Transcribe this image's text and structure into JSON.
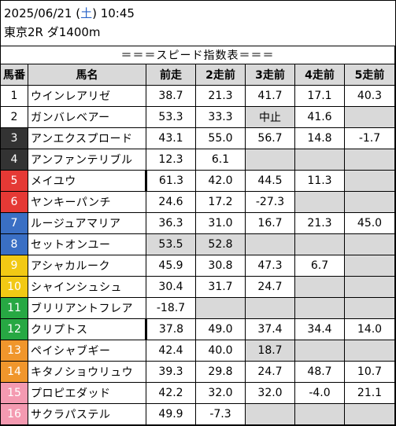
{
  "header": {
    "date": "2025/06/21 (",
    "dow": "土",
    "time": ") 10:45",
    "race": "東京2R ダ1400m"
  },
  "table": {
    "title": "＝＝＝スピード指数表＝＝＝",
    "columns": [
      "馬番",
      "馬名",
      "前走",
      "2走前",
      "3走前",
      "4走前",
      "5走前"
    ],
    "rows": [
      {
        "no": "1",
        "name": "ウインレアリゼ",
        "v": [
          "38.7",
          "21.3",
          "41.7",
          "17.1",
          "40.3"
        ],
        "gray": [
          false,
          false,
          false,
          false,
          false
        ],
        "mark": false
      },
      {
        "no": "2",
        "name": "ガンバレベアー",
        "v": [
          "53.3",
          "33.3",
          "中止",
          "41.6",
          ""
        ],
        "gray": [
          false,
          false,
          true,
          false,
          true
        ],
        "mark": false
      },
      {
        "no": "3",
        "name": "アンエクスプロード",
        "v": [
          "43.1",
          "55.0",
          "56.7",
          "14.8",
          "-1.7"
        ],
        "gray": [
          false,
          false,
          false,
          false,
          false
        ],
        "mark": false
      },
      {
        "no": "4",
        "name": "アンファンテリブル",
        "v": [
          "12.3",
          "6.1",
          "",
          "",
          ""
        ],
        "gray": [
          false,
          false,
          true,
          true,
          true
        ],
        "mark": false
      },
      {
        "no": "5",
        "name": "メイユウ",
        "v": [
          "61.3",
          "42.0",
          "44.5",
          "11.3",
          ""
        ],
        "gray": [
          false,
          false,
          false,
          false,
          true
        ],
        "mark": true
      },
      {
        "no": "6",
        "name": "ヤンキーパンチ",
        "v": [
          "24.6",
          "17.2",
          "-27.3",
          "",
          ""
        ],
        "gray": [
          false,
          false,
          false,
          true,
          true
        ],
        "mark": false
      },
      {
        "no": "7",
        "name": "ルージュアマリア",
        "v": [
          "36.3",
          "31.0",
          "16.7",
          "21.3",
          "45.0"
        ],
        "gray": [
          false,
          false,
          false,
          false,
          false
        ],
        "mark": false
      },
      {
        "no": "8",
        "name": "セットオンユー",
        "v": [
          "53.5",
          "52.8",
          "",
          "",
          ""
        ],
        "gray": [
          true,
          true,
          true,
          true,
          true
        ],
        "mark": false
      },
      {
        "no": "9",
        "name": "アシャカルーク",
        "v": [
          "45.9",
          "30.8",
          "47.3",
          "6.7",
          ""
        ],
        "gray": [
          false,
          false,
          false,
          false,
          true
        ],
        "mark": false
      },
      {
        "no": "10",
        "name": "シャインシュシュ",
        "v": [
          "30.4",
          "31.7",
          "24.7",
          "",
          ""
        ],
        "gray": [
          false,
          false,
          false,
          true,
          true
        ],
        "mark": false
      },
      {
        "no": "11",
        "name": "ブリリアントフレア",
        "v": [
          "-18.7",
          "",
          "",
          "",
          ""
        ],
        "gray": [
          false,
          true,
          true,
          true,
          true
        ],
        "mark": false
      },
      {
        "no": "12",
        "name": "クリプトス",
        "v": [
          "37.8",
          "49.0",
          "37.4",
          "34.4",
          "14.0"
        ],
        "gray": [
          false,
          false,
          false,
          false,
          false
        ],
        "mark": true
      },
      {
        "no": "13",
        "name": "ペイシャブギー",
        "v": [
          "42.4",
          "40.0",
          "18.7",
          "",
          ""
        ],
        "gray": [
          false,
          false,
          true,
          true,
          true
        ],
        "mark": false
      },
      {
        "no": "14",
        "name": "キタノショウリュウ",
        "v": [
          "39.3",
          "29.8",
          "24.7",
          "48.7",
          "10.7"
        ],
        "gray": [
          false,
          false,
          false,
          false,
          false
        ],
        "mark": false
      },
      {
        "no": "15",
        "name": "プロピエダッド",
        "v": [
          "42.2",
          "32.0",
          "32.0",
          "-4.0",
          "21.1"
        ],
        "gray": [
          false,
          false,
          false,
          false,
          false
        ],
        "mark": false
      },
      {
        "no": "16",
        "name": "サクラパステル",
        "v": [
          "49.9",
          "-7.3",
          "",
          "",
          ""
        ],
        "gray": [
          false,
          false,
          true,
          true,
          true
        ],
        "mark": false
      }
    ]
  },
  "frame_colors": [
    {
      "bg": "#ffffff",
      "fg": "#000000"
    },
    {
      "bg": "#ffffff",
      "fg": "#000000"
    },
    {
      "bg": "#333333",
      "fg": "#ffffff"
    },
    {
      "bg": "#333333",
      "fg": "#ffffff"
    },
    {
      "bg": "#e53935",
      "fg": "#ffffff"
    },
    {
      "bg": "#e53935",
      "fg": "#ffffff"
    },
    {
      "bg": "#3a6fc4",
      "fg": "#ffffff"
    },
    {
      "bg": "#3a6fc4",
      "fg": "#ffffff"
    },
    {
      "bg": "#f2c914",
      "fg": "#ffffff"
    },
    {
      "bg": "#f2c914",
      "fg": "#ffffff"
    },
    {
      "bg": "#27a843",
      "fg": "#ffffff"
    },
    {
      "bg": "#27a843",
      "fg": "#ffffff"
    },
    {
      "bg": "#f0962c",
      "fg": "#ffffff"
    },
    {
      "bg": "#f0962c",
      "fg": "#ffffff"
    },
    {
      "bg": "#f49ab1",
      "fg": "#ffffff"
    },
    {
      "bg": "#f49ab1",
      "fg": "#ffffff"
    }
  ]
}
